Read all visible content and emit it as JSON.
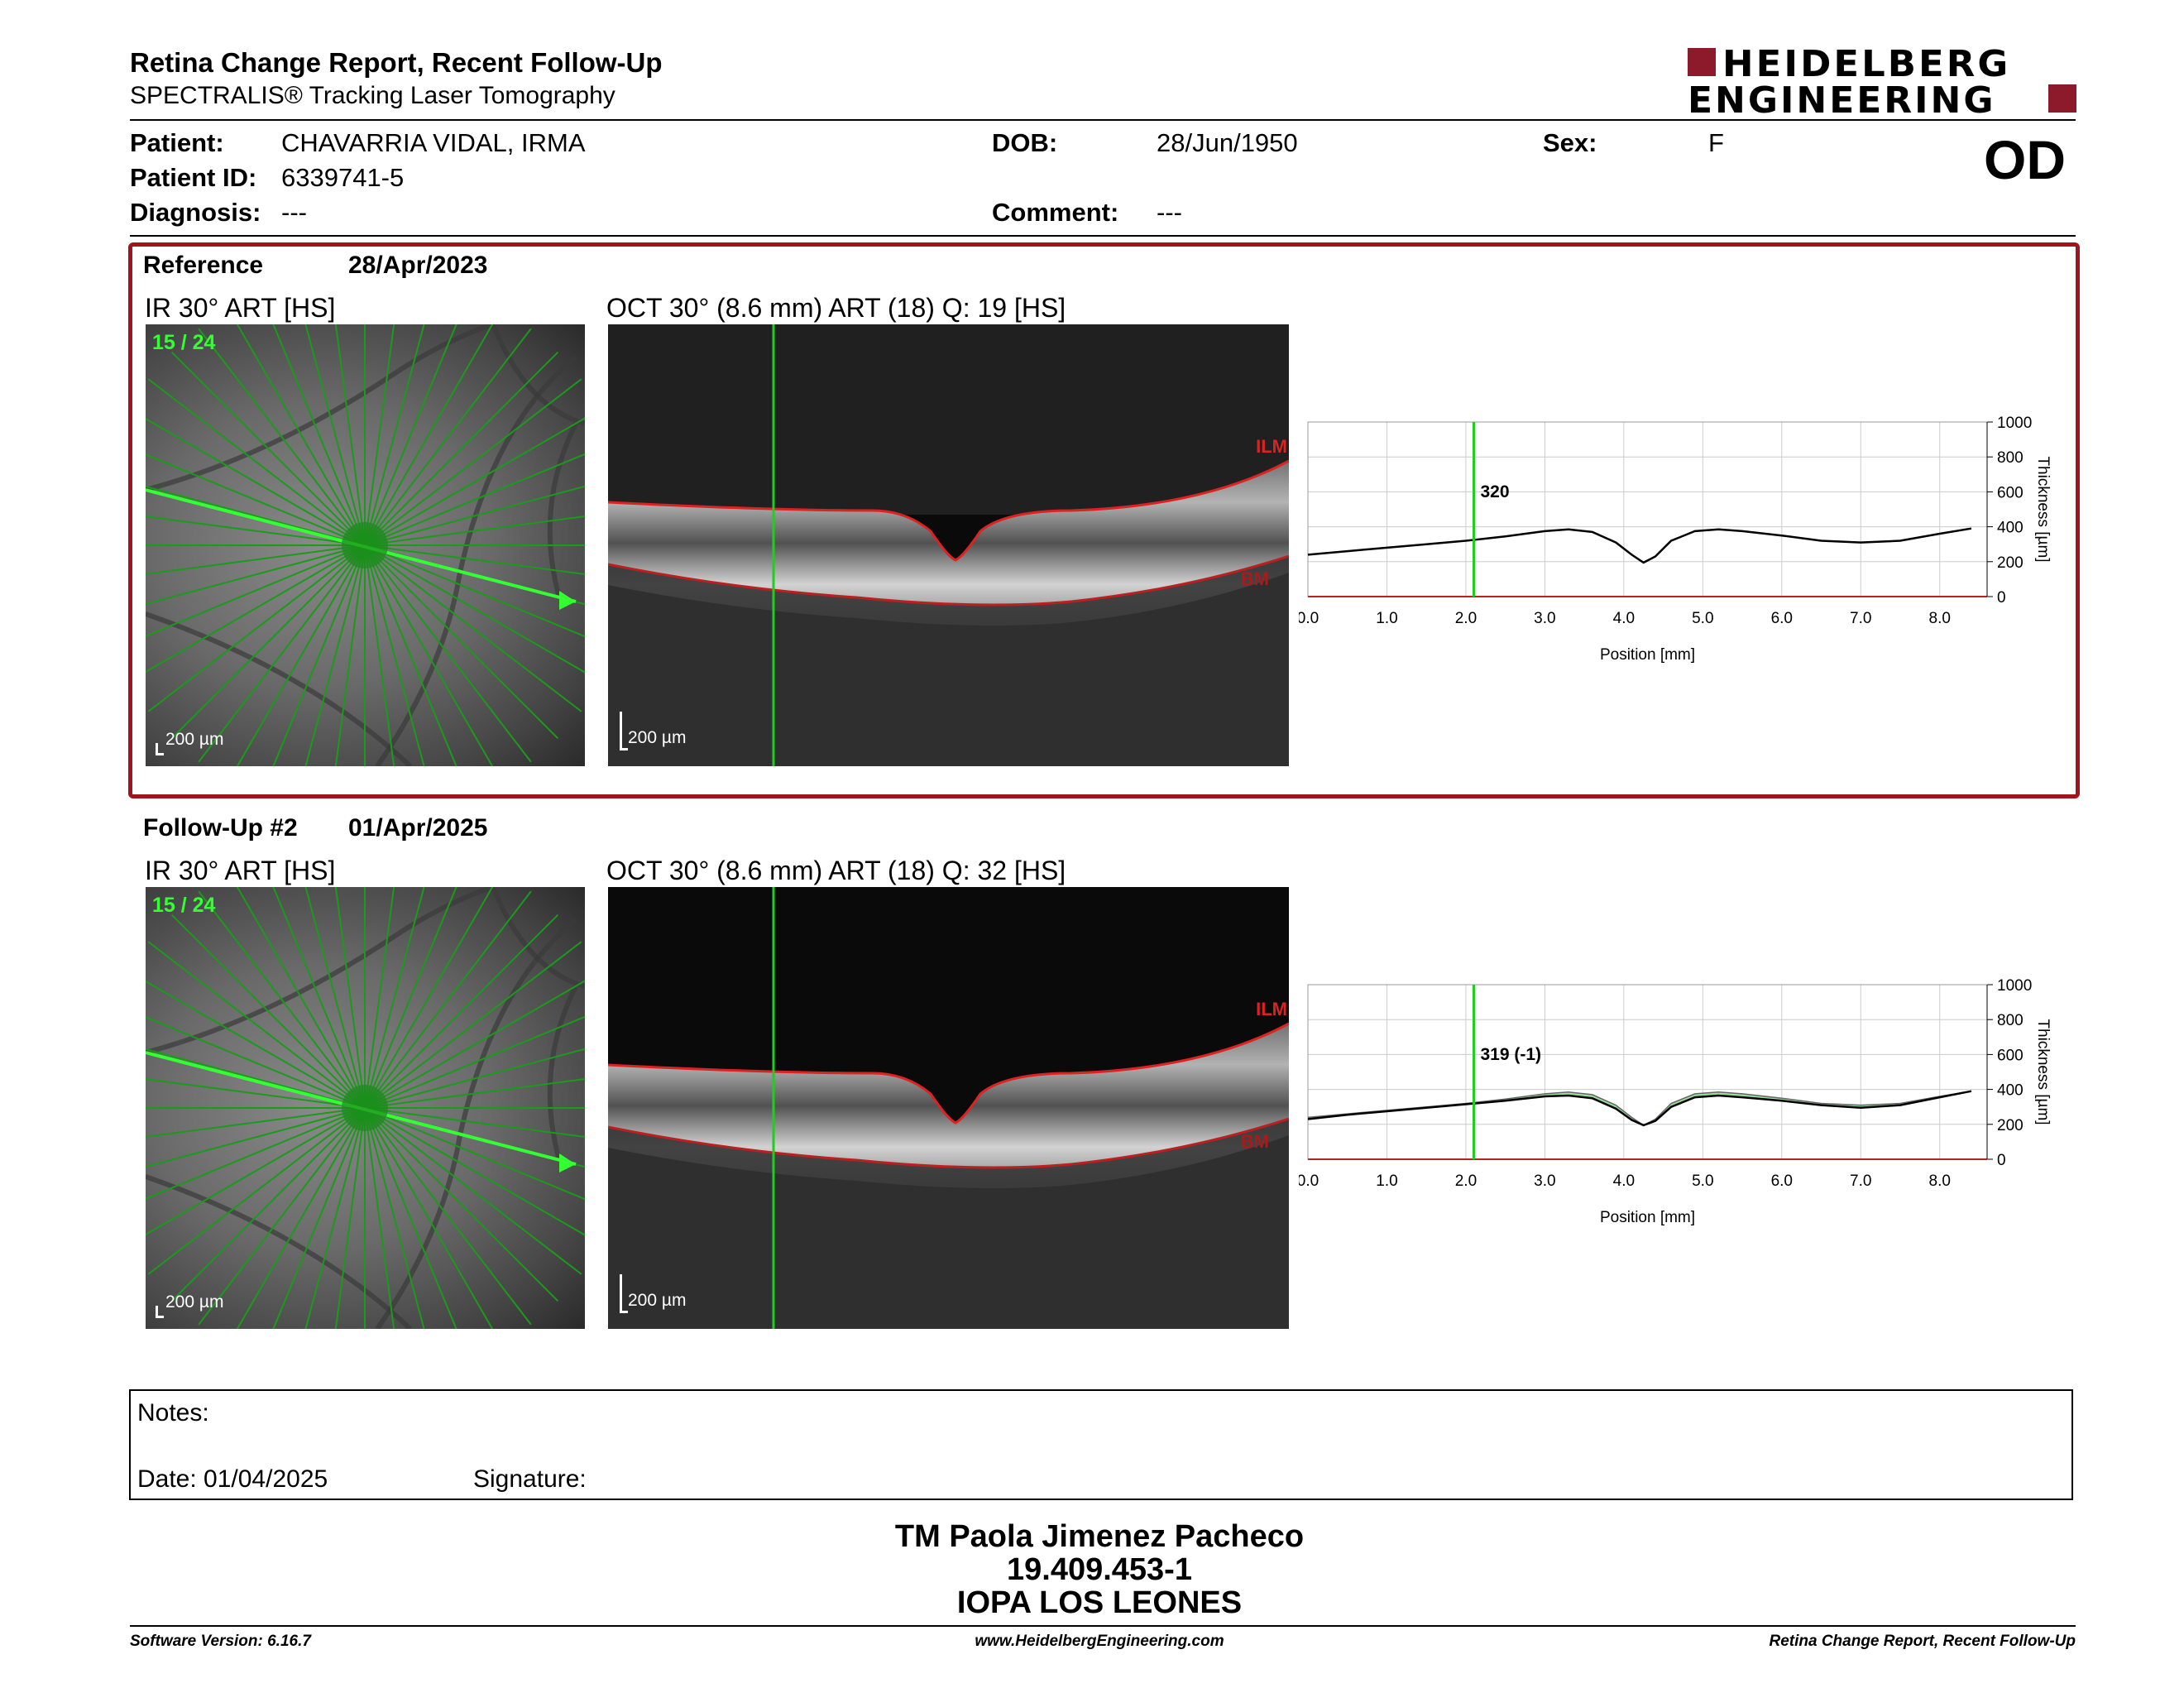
{
  "header": {
    "title": "Retina Change Report, Recent Follow-Up",
    "subtitle": "SPECTRALIS® Tracking Laser Tomography",
    "logo_line1": "HEIDELBERG",
    "logo_line2": "ENGINEERING",
    "eye": "OD"
  },
  "patient": {
    "name_label": "Patient:",
    "name": "CHAVARRIA VIDAL, IRMA",
    "id_label": "Patient ID:",
    "id": "6339741-5",
    "diagnosis_label": "Diagnosis:",
    "diagnosis": "---",
    "dob_label": "DOB:",
    "dob": "28/Jun/1950",
    "comment_label": "Comment:",
    "comment": "---",
    "sex_label": "Sex:",
    "sex": "F"
  },
  "exams": [
    {
      "label": "Reference",
      "date": "28/Apr/2023",
      "ir_caption": "IR 30° ART [HS]",
      "scan_index": "15 / 24",
      "oct_caption": "OCT 30° (8.6 mm) ART (18) Q: 19 [HS]",
      "scale": "200 µm",
      "ilm": "ILM",
      "bm": "BM",
      "marker_value": "320"
    },
    {
      "label": "Follow-Up #2",
      "date": "01/Apr/2025",
      "ir_caption": "IR 30° ART [HS]",
      "scan_index": "15 / 24",
      "oct_caption": "OCT 30° (8.6 mm) ART (18) Q: 32 [HS]",
      "scale": "200 µm",
      "ilm": "ILM",
      "bm": "BM",
      "marker_value": "319 (-1)"
    }
  ],
  "notes": {
    "notes_label": "Notes:",
    "date_label": "Date: 01/04/2025",
    "signature_label": "Signature:"
  },
  "signature_block": {
    "name": "TM Paola Jimenez Pacheco",
    "rut": "19.409.453-1",
    "clinic": "IOPA LOS LEONES"
  },
  "footer": {
    "software": "Software Version: 6.16.7",
    "website": "www.HeidelbergEngineering.com",
    "report": "Retina Change Report, Recent Follow-Up"
  },
  "colors": {
    "frame": "#a0141e",
    "logo": "#8c1a2b",
    "green": "#22cc22",
    "layer": "#dd2222"
  },
  "chart_data": [
    {
      "type": "line",
      "title": "",
      "xlabel": "Position [mm]",
      "ylabel": "Thickness [µm]",
      "xlim": [
        0.0,
        8.6
      ],
      "ylim": [
        0,
        1000
      ],
      "xticks": [
        "0.0",
        "1.0",
        "2.0",
        "3.0",
        "4.0",
        "5.0",
        "6.0",
        "7.0",
        "8.0"
      ],
      "yticks": [
        "0",
        "200",
        "400",
        "600",
        "800",
        "1000"
      ],
      "marker_x": 2.1,
      "series": [
        {
          "x": [
            0.0,
            0.5,
            1.0,
            1.5,
            2.0,
            2.5,
            3.0,
            3.3,
            3.6,
            3.9,
            4.1,
            4.25,
            4.4,
            4.6,
            4.9,
            5.2,
            5.5,
            6.0,
            6.5,
            7.0,
            7.5,
            8.0,
            8.4
          ],
          "values": [
            240,
            260,
            280,
            300,
            320,
            345,
            375,
            385,
            370,
            310,
            240,
            195,
            230,
            320,
            375,
            385,
            375,
            350,
            320,
            310,
            320,
            360,
            390
          ]
        }
      ]
    },
    {
      "type": "line",
      "title": "",
      "xlabel": "Position [mm]",
      "ylabel": "Thickness [µm]",
      "xlim": [
        0.0,
        8.6
      ],
      "ylim": [
        0,
        1000
      ],
      "xticks": [
        "0.0",
        "1.0",
        "2.0",
        "3.0",
        "4.0",
        "5.0",
        "6.0",
        "7.0",
        "8.0"
      ],
      "yticks": [
        "0",
        "200",
        "400",
        "600",
        "800",
        "1000"
      ],
      "marker_x": 2.1,
      "series": [
        {
          "x": [
            0.0,
            0.5,
            1.0,
            1.5,
            2.0,
            2.5,
            3.0,
            3.3,
            3.6,
            3.9,
            4.1,
            4.25,
            4.4,
            4.6,
            4.9,
            5.2,
            5.5,
            6.0,
            6.5,
            7.0,
            7.5,
            8.0,
            8.4
          ],
          "values": [
            230,
            255,
            275,
            295,
            315,
            335,
            360,
            365,
            350,
            290,
            225,
            195,
            220,
            300,
            355,
            365,
            355,
            335,
            310,
            295,
            310,
            355,
            390
          ]
        },
        {
          "x": [
            0.0,
            0.5,
            1.0,
            1.5,
            2.0,
            2.5,
            3.0,
            3.3,
            3.6,
            3.9,
            4.1,
            4.25,
            4.4,
            4.6,
            4.9,
            5.2,
            5.5,
            6.0,
            6.5,
            7.0,
            7.5,
            8.0,
            8.4
          ],
          "values": [
            240,
            260,
            280,
            300,
            320,
            345,
            375,
            385,
            370,
            310,
            240,
            195,
            230,
            320,
            375,
            385,
            375,
            350,
            320,
            310,
            320,
            360,
            390
          ]
        }
      ]
    }
  ]
}
